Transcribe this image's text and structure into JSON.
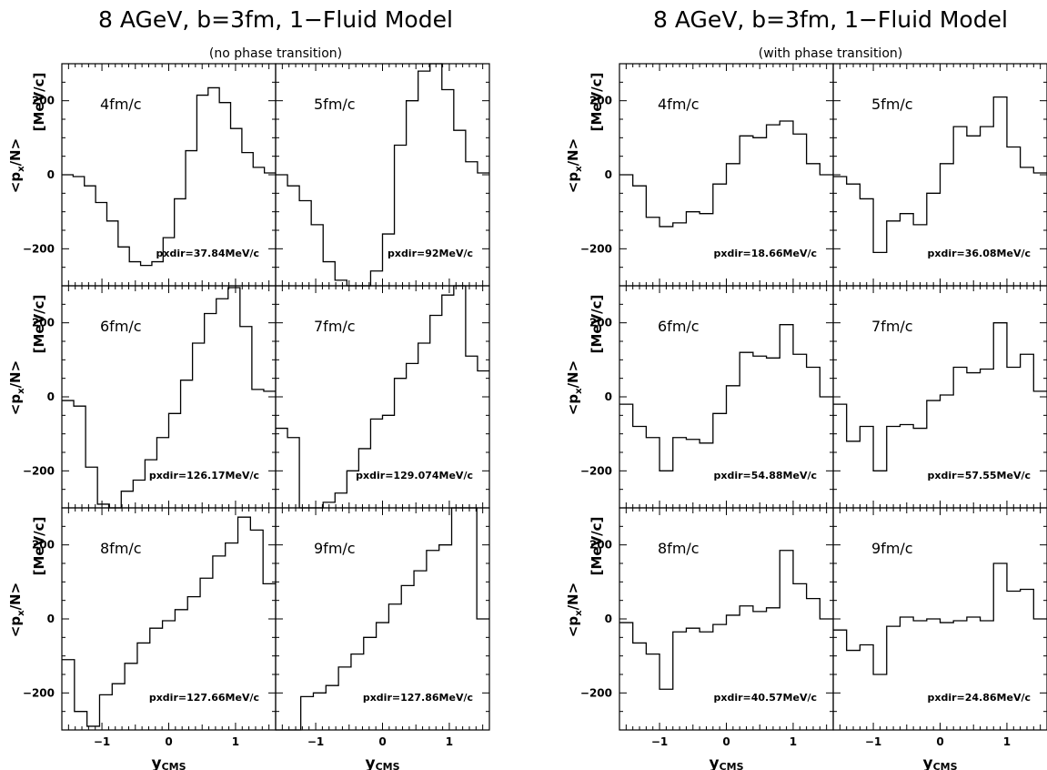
{
  "chart_data": [
    {
      "type": "line",
      "step": "histogram",
      "title": "8 AGeV, b=3fm, 1−Fluid Model",
      "subtitle": "(no phase transition)",
      "xlabel": "y",
      "xlabel_sub": "CMS",
      "ylabel_pre": "<p",
      "ylabel_sub": "x",
      "ylabel_post": "/N>",
      "ylabel_unit": "[MeV/c]",
      "xlim": [
        -1.6,
        1.6
      ],
      "ylim": [
        -300,
        300
      ],
      "x_ticks": [
        "−1",
        "0",
        "1"
      ],
      "y_ticks": [
        "200",
        "0",
        "−200"
      ],
      "bin_edges": [
        -1.6,
        -1.4,
        -1.3,
        -1.2,
        -1.1,
        -1.0,
        -0.9,
        -0.8,
        -0.7,
        -0.6,
        -0.5,
        -0.4,
        -0.3,
        -0.2,
        -0.1,
        0.0,
        0.1,
        0.2,
        0.3,
        0.4,
        0.5,
        0.6,
        0.7,
        0.8,
        0.9,
        1.0,
        1.1,
        1.2,
        1.3,
        1.4,
        1.5,
        1.6
      ],
      "panels": [
        {
          "time": "4fm/c",
          "note": "pxdir=37.84MeV/c",
          "values": [
            0,
            -5,
            -30,
            -75,
            -125,
            -195,
            -235,
            -245,
            -235,
            -170,
            -65,
            65,
            215,
            235,
            195,
            125,
            60,
            20,
            5
          ]
        },
        {
          "time": "5fm/c",
          "note": "pxdir=92MeV/c",
          "values": [
            0,
            -30,
            -70,
            -135,
            -235,
            -285,
            -300,
            -300,
            -260,
            -160,
            80,
            200,
            280,
            300,
            230,
            120,
            35,
            5
          ]
        },
        {
          "time": "6fm/c",
          "note": "pxdir=126.17MeV/c",
          "values": [
            -10,
            -25,
            -190,
            -290,
            -300,
            -255,
            -225,
            -170,
            -110,
            -45,
            45,
            145,
            225,
            265,
            295,
            190,
            20,
            15
          ]
        },
        {
          "time": "7fm/c",
          "note": "pxdir=129.074MeV/c",
          "values": [
            -85,
            -110,
            -300,
            -300,
            -285,
            -260,
            -200,
            -140,
            -60,
            -50,
            50,
            90,
            145,
            220,
            275,
            300,
            110,
            70
          ]
        },
        {
          "time": "8fm/c",
          "note": "pxdir=127.66MeV/c",
          "values": [
            -110,
            -250,
            -290,
            -205,
            -175,
            -120,
            -65,
            -25,
            -5,
            25,
            60,
            110,
            170,
            205,
            275,
            240,
            95
          ]
        },
        {
          "time": "9fm/c",
          "note": "pxdir=127.86MeV/c",
          "values": [
            -300,
            -300,
            -210,
            -200,
            -180,
            -130,
            -95,
            -50,
            -10,
            40,
            90,
            130,
            185,
            200,
            300,
            300,
            0
          ]
        }
      ]
    },
    {
      "type": "line",
      "step": "histogram",
      "title": "8 AGeV, b=3fm, 1−Fluid Model",
      "subtitle": "(with phase transition)",
      "xlabel": "y",
      "xlabel_sub": "CMS",
      "ylabel_pre": "<p",
      "ylabel_sub": "x",
      "ylabel_post": "/N>",
      "ylabel_unit": "[MeV/c]",
      "xlim": [
        -1.6,
        1.6
      ],
      "ylim": [
        -300,
        300
      ],
      "x_ticks": [
        "−1",
        "0",
        "1"
      ],
      "y_ticks": [
        "200",
        "0",
        "−200"
      ],
      "panels": [
        {
          "time": "4fm/c",
          "note": "pxdir=18.66MeV/c",
          "values": [
            0,
            -30,
            -115,
            -140,
            -130,
            -100,
            -105,
            -25,
            30,
            105,
            100,
            135,
            145,
            110,
            30,
            0
          ]
        },
        {
          "time": "5fm/c",
          "note": "pxdir=36.08MeV/c",
          "values": [
            -5,
            -25,
            -65,
            -210,
            -125,
            -105,
            -135,
            -50,
            30,
            130,
            105,
            130,
            210,
            75,
            20,
            5
          ]
        },
        {
          "time": "6fm/c",
          "note": "pxdir=54.88MeV/c",
          "values": [
            -20,
            -80,
            -110,
            -200,
            -110,
            -115,
            -125,
            -45,
            30,
            120,
            110,
            105,
            195,
            115,
            80,
            0
          ]
        },
        {
          "time": "7fm/c",
          "note": "pxdir=57.55MeV/c",
          "values": [
            -20,
            -120,
            -80,
            -200,
            -80,
            -75,
            -85,
            -10,
            5,
            80,
            65,
            75,
            200,
            80,
            115,
            15
          ]
        },
        {
          "time": "8fm/c",
          "note": "pxdir=40.57MeV/c",
          "values": [
            -10,
            -65,
            -95,
            -190,
            -35,
            -25,
            -35,
            -15,
            10,
            35,
            20,
            30,
            185,
            95,
            55,
            0
          ]
        },
        {
          "time": "9fm/c",
          "note": "pxdir=24.86MeV/c",
          "values": [
            -30,
            -85,
            -70,
            -150,
            -20,
            5,
            -5,
            0,
            -10,
            -5,
            5,
            -5,
            150,
            75,
            80,
            0
          ]
        }
      ]
    }
  ]
}
